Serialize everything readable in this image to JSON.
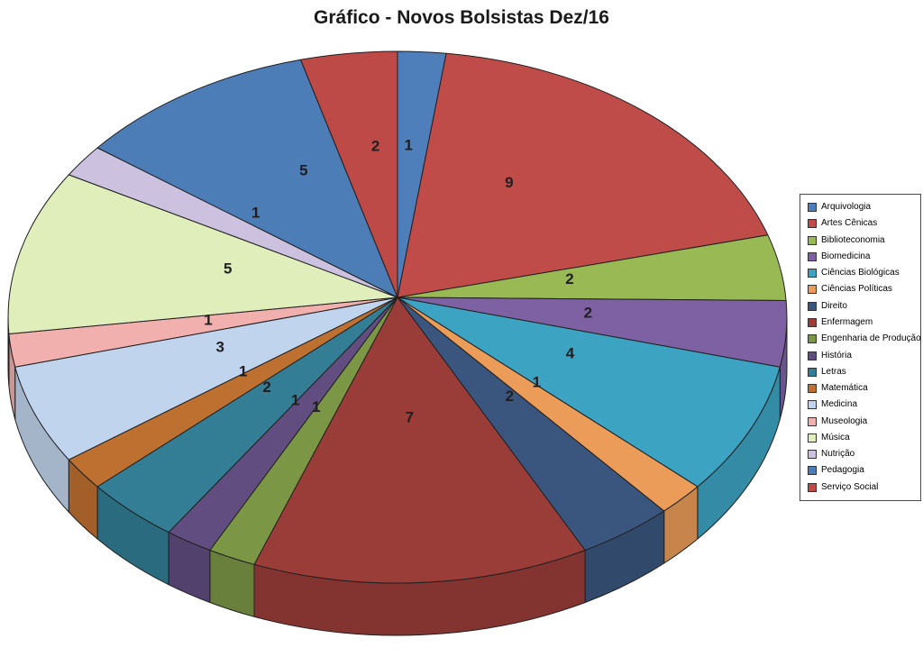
{
  "title": "Gráfico - Novos Bolsistas Dez/16",
  "colors": {
    "background": "#FFFFFF",
    "title_text": "#1A1A1A",
    "slice_label_text": "#1F1F1F",
    "slice_border": "#1F1F1F",
    "legend_border": "#4A4A4A",
    "legend_background": "#FFFFFF"
  },
  "chart_data": {
    "type": "pie",
    "style": "3d",
    "title": "Gráfico - Novos Bolsistas Dez/16",
    "total": 50,
    "legend_position": "right",
    "data_labels": "value",
    "slices": [
      {
        "label": "Arquivologia",
        "value": 1,
        "color": "#4E7FBA"
      },
      {
        "label": "Artes Cênicas",
        "value": 9,
        "color": "#BF4C49"
      },
      {
        "label": "Biblioteconomia",
        "value": 2,
        "color": "#98B954"
      },
      {
        "label": "Biomedicina",
        "value": 2,
        "color": "#7D61A3"
      },
      {
        "label": "Ciências Biológicas",
        "value": 4,
        "color": "#3DA3C2"
      },
      {
        "label": "Ciências Políticas",
        "value": 1,
        "color": "#EB9C58"
      },
      {
        "label": "Direito",
        "value": 2,
        "color": "#3A567E"
      },
      {
        "label": "Enfermagem",
        "value": 7,
        "color": "#9A3D39"
      },
      {
        "label": "Engenharia de Produção",
        "value": 1,
        "color": "#7B9746"
      },
      {
        "label": "História",
        "value": 1,
        "color": "#624D80"
      },
      {
        "label": "Letras",
        "value": 2,
        "color": "#337E95"
      },
      {
        "label": "Matemática",
        "value": 1,
        "color": "#BE7031"
      },
      {
        "label": "Medicina",
        "value": 3,
        "color": "#C1D4ED"
      },
      {
        "label": "Museologia",
        "value": 1,
        "color": "#F1AFAD"
      },
      {
        "label": "Música",
        "value": 5,
        "color": "#DFEEBB"
      },
      {
        "label": "Nutrição",
        "value": 1,
        "color": "#CCC2DF"
      },
      {
        "label": "Pedagogia",
        "value": 5,
        "color": "#4D7DB6"
      },
      {
        "label": "Serviço Social",
        "value": 2,
        "color": "#BD4A47"
      }
    ]
  }
}
